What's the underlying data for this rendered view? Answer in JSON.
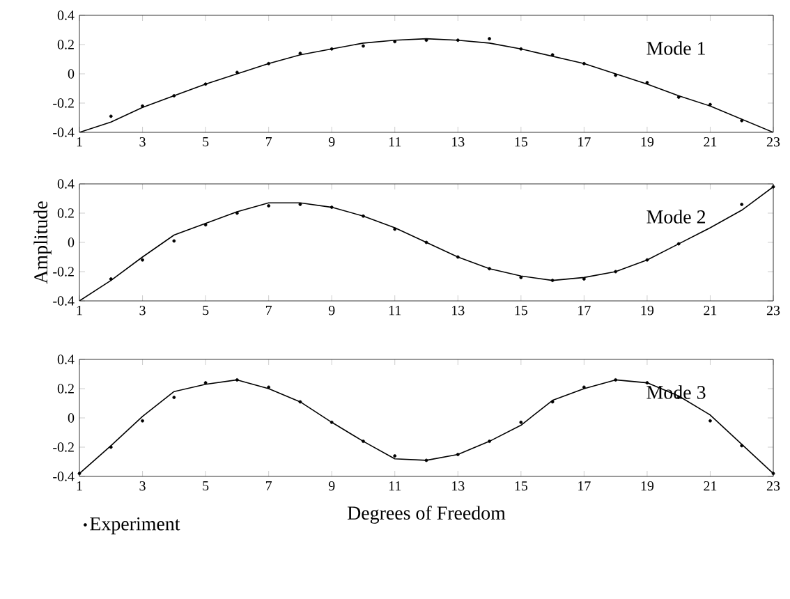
{
  "chart_data": [
    {
      "type": "line",
      "annotations": [
        "Mode 1"
      ],
      "x": [
        1,
        2,
        3,
        4,
        5,
        6,
        7,
        8,
        9,
        10,
        11,
        12,
        13,
        14,
        15,
        16,
        17,
        18,
        19,
        20,
        21,
        22,
        23
      ],
      "xlim": [
        1,
        23
      ],
      "xticks": [
        1,
        3,
        5,
        7,
        9,
        11,
        13,
        15,
        17,
        19,
        21,
        23
      ],
      "ylim": [
        -0.4,
        0.4
      ],
      "yticks": [
        -0.4,
        -0.2,
        0,
        0.2,
        0.4
      ],
      "grid": false,
      "series": [
        {
          "type": "line",
          "color": "#000000",
          "marker": "none",
          "line_style": "solid",
          "values": [
            -0.4,
            -0.33,
            -0.23,
            -0.15,
            -0.07,
            0.0,
            0.07,
            0.13,
            0.17,
            0.21,
            0.23,
            0.24,
            0.23,
            0.21,
            0.17,
            0.12,
            0.07,
            0.0,
            -0.07,
            -0.15,
            -0.22,
            -0.31,
            -0.4
          ]
        },
        {
          "type": "scatter",
          "color": "#000000",
          "marker": "circle",
          "values": [
            null,
            -0.29,
            -0.22,
            -0.15,
            -0.07,
            0.01,
            0.07,
            0.14,
            0.17,
            0.19,
            0.22,
            0.23,
            0.23,
            0.24,
            0.17,
            0.13,
            0.07,
            -0.01,
            -0.06,
            -0.16,
            -0.21,
            -0.32,
            null
          ]
        }
      ]
    },
    {
      "type": "line",
      "ylabel": "Amplitude",
      "annotations": [
        "Mode 2"
      ],
      "x": [
        1,
        2,
        3,
        4,
        5,
        6,
        7,
        8,
        9,
        10,
        11,
        12,
        13,
        14,
        15,
        16,
        17,
        18,
        19,
        20,
        21,
        22,
        23
      ],
      "xlim": [
        1,
        23
      ],
      "xticks": [
        1,
        3,
        5,
        7,
        9,
        11,
        13,
        15,
        17,
        19,
        21,
        23
      ],
      "ylim": [
        -0.4,
        0.4
      ],
      "yticks": [
        -0.4,
        -0.2,
        0,
        0.2,
        0.4
      ],
      "grid": false,
      "series": [
        {
          "type": "line",
          "color": "#000000",
          "marker": "none",
          "line_style": "solid",
          "values": [
            -0.4,
            -0.26,
            -0.1,
            0.05,
            0.13,
            0.21,
            0.27,
            0.27,
            0.24,
            0.18,
            0.1,
            0.0,
            -0.1,
            -0.18,
            -0.23,
            -0.26,
            -0.24,
            -0.2,
            -0.12,
            -0.01,
            0.1,
            0.22,
            0.38
          ]
        },
        {
          "type": "scatter",
          "color": "#000000",
          "marker": "circle",
          "values": [
            null,
            -0.25,
            -0.12,
            0.01,
            0.12,
            0.2,
            0.25,
            0.26,
            0.24,
            0.18,
            0.09,
            0.0,
            -0.1,
            -0.18,
            -0.24,
            -0.26,
            -0.25,
            -0.2,
            -0.12,
            -0.01,
            null,
            0.26,
            0.38
          ]
        }
      ]
    },
    {
      "type": "line",
      "xlabel": "Degrees of Freedom",
      "annotations": [
        "Mode 3"
      ],
      "legend": "bottom left",
      "x": [
        1,
        2,
        3,
        4,
        5,
        6,
        7,
        8,
        9,
        10,
        11,
        12,
        13,
        14,
        15,
        16,
        17,
        18,
        19,
        20,
        21,
        22,
        23
      ],
      "xlim": [
        1,
        23
      ],
      "xticks": [
        1,
        3,
        5,
        7,
        9,
        11,
        13,
        15,
        17,
        19,
        21,
        23
      ],
      "ylim": [
        -0.4,
        0.4
      ],
      "yticks": [
        -0.4,
        -0.2,
        0,
        0.2,
        0.4
      ],
      "grid": false,
      "series": [
        {
          "type": "line",
          "color": "#000000",
          "marker": "none",
          "line_style": "solid",
          "values": [
            -0.38,
            -0.19,
            0.01,
            0.18,
            0.23,
            0.26,
            0.2,
            0.11,
            -0.03,
            -0.16,
            -0.28,
            -0.29,
            -0.25,
            -0.16,
            -0.05,
            0.12,
            0.2,
            0.26,
            0.24,
            0.15,
            0.02,
            -0.18,
            -0.38
          ]
        },
        {
          "type": "scatter",
          "name": "Experiment",
          "color": "#000000",
          "marker": "circle",
          "values": [
            -0.38,
            -0.2,
            -0.02,
            0.14,
            0.24,
            0.26,
            0.21,
            0.11,
            -0.03,
            -0.16,
            -0.26,
            -0.29,
            -0.25,
            -0.16,
            -0.03,
            0.11,
            0.21,
            0.26,
            0.24,
            0.14,
            -0.02,
            -0.19,
            -0.38
          ]
        }
      ]
    }
  ]
}
